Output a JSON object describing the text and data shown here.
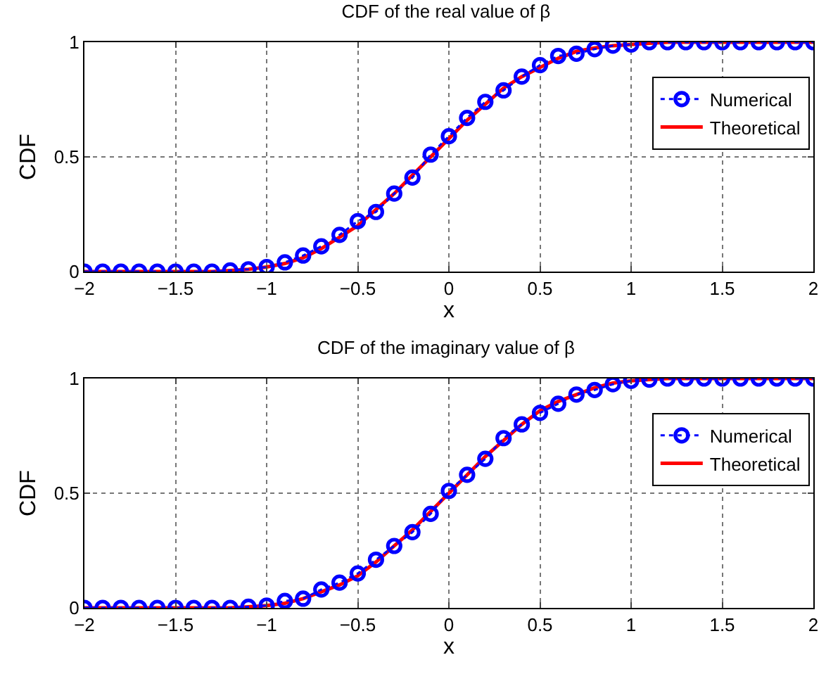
{
  "chart_data": [
    {
      "type": "line",
      "title": "CDF of the real value of β",
      "xlabel": "x",
      "ylabel": "CDF",
      "xlim": [
        -2,
        2
      ],
      "xticks": [
        {
          "value": -2,
          "label": "−2"
        },
        {
          "value": -1.5,
          "label": "−1.5"
        },
        {
          "value": -1,
          "label": "−1"
        },
        {
          "value": -0.5,
          "label": "−0.5"
        },
        0,
        0.5,
        1,
        1.5,
        2
      ],
      "ylim": [
        0,
        1
      ],
      "yticks": [
        0,
        0.5,
        1
      ],
      "grid": true,
      "legend": "top right",
      "x": [
        -2,
        -1.9,
        -1.8,
        -1.7,
        -1.6,
        -1.5,
        -1.4,
        -1.3,
        -1.2,
        -1.1,
        -1,
        -0.9,
        -0.8,
        -0.7,
        -0.6,
        -0.5,
        -0.4,
        -0.3,
        -0.2,
        -0.1,
        0,
        0.1,
        0.2,
        0.3,
        0.4,
        0.5,
        0.6,
        0.7,
        0.8,
        0.9,
        1,
        1.1,
        1.2,
        1.3,
        1.4,
        1.5,
        1.6,
        1.7,
        1.8,
        1.9,
        2
      ],
      "series": [
        {
          "name": "Numerical",
          "color": "#0000ff",
          "marker": "circle",
          "line_style": "dotted",
          "values": [
            0,
            0,
            0,
            0,
            0,
            0,
            0,
            0,
            0.005,
            0.01,
            0.02,
            0.04,
            0.07,
            0.11,
            0.16,
            0.22,
            0.26,
            0.34,
            0.41,
            0.51,
            0.59,
            0.67,
            0.74,
            0.79,
            0.85,
            0.9,
            0.94,
            0.95,
            0.97,
            0.985,
            0.99,
            1,
            1,
            1,
            1,
            1,
            1,
            1,
            1,
            1,
            1
          ]
        },
        {
          "name": "Theoretical",
          "color": "#ff0000",
          "line_style": "solid",
          "values": [
            0,
            0,
            0,
            0,
            0,
            0,
            0,
            0,
            0.005,
            0.01,
            0.02,
            0.035,
            0.06,
            0.1,
            0.15,
            0.2,
            0.27,
            0.34,
            0.42,
            0.5,
            0.58,
            0.66,
            0.73,
            0.8,
            0.85,
            0.89,
            0.93,
            0.96,
            0.975,
            0.985,
            0.99,
            0.995,
            1,
            1,
            1,
            1,
            1,
            1,
            1,
            1,
            1
          ]
        }
      ]
    },
    {
      "type": "line",
      "title": "CDF of the imaginary value of β",
      "xlabel": "x",
      "ylabel": "CDF",
      "xlim": [
        -2,
        2
      ],
      "xticks": [
        {
          "value": -2,
          "label": "−2"
        },
        {
          "value": -1.5,
          "label": "−1.5"
        },
        {
          "value": -1,
          "label": "−1"
        },
        {
          "value": -0.5,
          "label": "−0.5"
        },
        0,
        0.5,
        1,
        1.5,
        2
      ],
      "ylim": [
        0,
        1
      ],
      "yticks": [
        0,
        0.5,
        1
      ],
      "grid": true,
      "legend": "top right",
      "x": [
        -2,
        -1.9,
        -1.8,
        -1.7,
        -1.6,
        -1.5,
        -1.4,
        -1.3,
        -1.2,
        -1.1,
        -1,
        -0.9,
        -0.8,
        -0.7,
        -0.6,
        -0.5,
        -0.4,
        -0.3,
        -0.2,
        -0.1,
        0,
        0.1,
        0.2,
        0.3,
        0.4,
        0.5,
        0.6,
        0.7,
        0.8,
        0.9,
        1,
        1.1,
        1.2,
        1.3,
        1.4,
        1.5,
        1.6,
        1.7,
        1.8,
        1.9,
        2
      ],
      "series": [
        {
          "name": "Numerical",
          "color": "#0000ff",
          "marker": "circle",
          "line_style": "dotted",
          "values": [
            0,
            0,
            0,
            0,
            0,
            0,
            0,
            0,
            0,
            0.005,
            0.01,
            0.03,
            0.04,
            0.08,
            0.11,
            0.15,
            0.21,
            0.27,
            0.33,
            0.41,
            0.51,
            0.58,
            0.65,
            0.74,
            0.8,
            0.85,
            0.89,
            0.93,
            0.95,
            0.975,
            0.99,
            0.995,
            1,
            1,
            1,
            1,
            1,
            1,
            1,
            1,
            1
          ]
        },
        {
          "name": "Theoretical",
          "color": "#ff0000",
          "line_style": "solid",
          "values": [
            0,
            0,
            0,
            0,
            0,
            0,
            0,
            0,
            0,
            0.005,
            0.01,
            0.02,
            0.04,
            0.07,
            0.1,
            0.14,
            0.2,
            0.27,
            0.34,
            0.42,
            0.5,
            0.58,
            0.66,
            0.73,
            0.8,
            0.86,
            0.9,
            0.93,
            0.96,
            0.98,
            0.99,
            0.995,
            1,
            1,
            1,
            1,
            1,
            1,
            1,
            1,
            1
          ]
        }
      ]
    }
  ]
}
